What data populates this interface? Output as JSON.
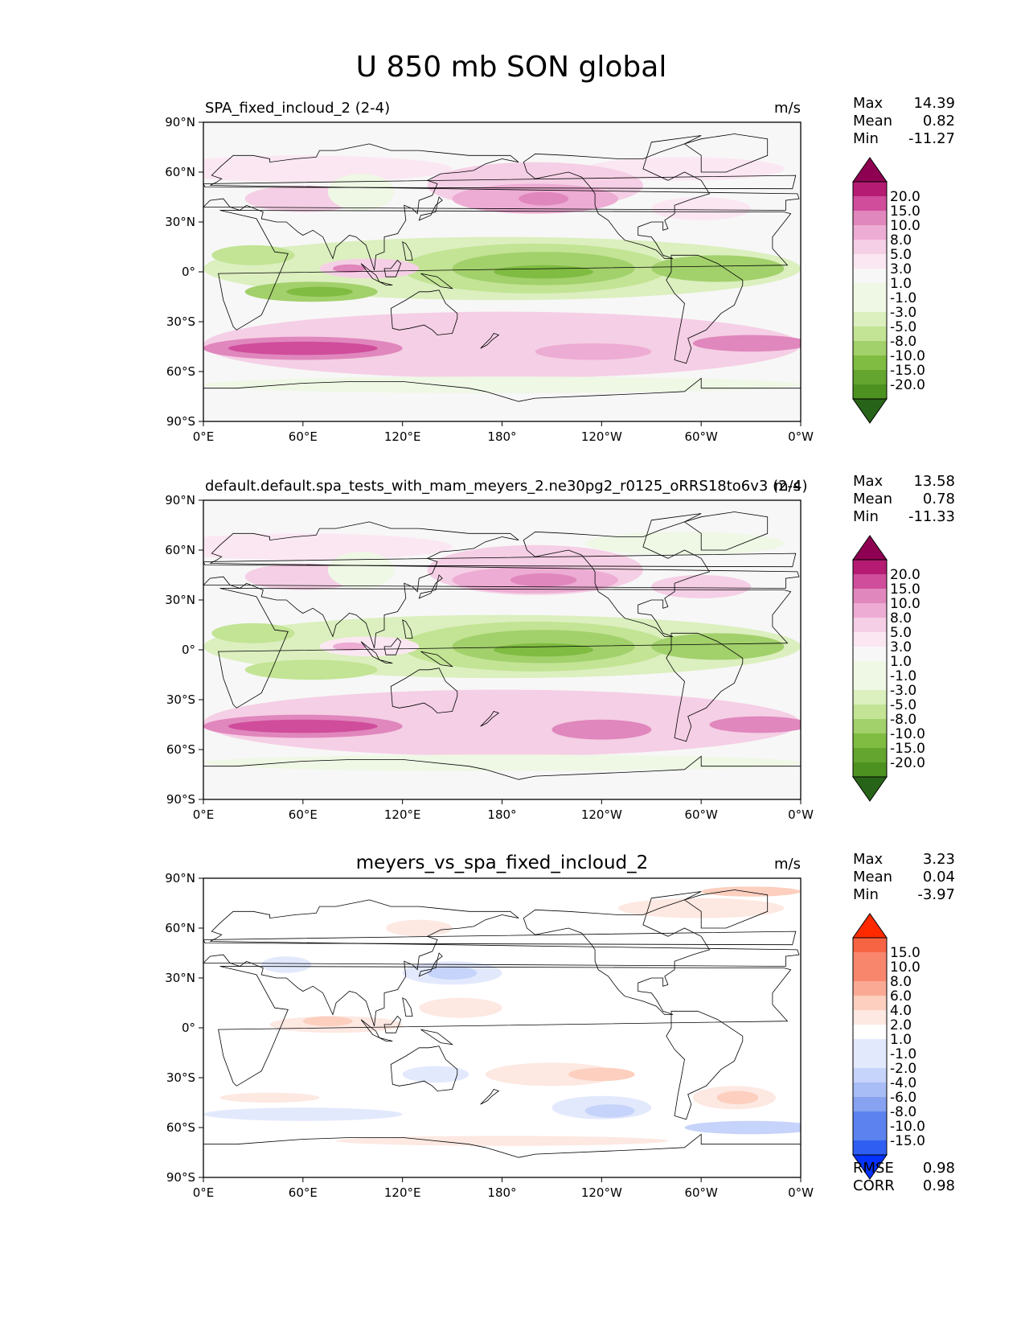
{
  "title": "U 850 mb SON global",
  "colors": {
    "diverging_pg": [
      "#276419",
      "#4d9221",
      "#63a52f",
      "#7fbc41",
      "#a2d06b",
      "#c2e494",
      "#dcefbf",
      "#eff7e5",
      "#f7f7f7",
      "#fbe7f2",
      "#f5cfe5",
      "#edacd3",
      "#e087bd",
      "#d04d9b",
      "#b51b73",
      "#8e0152"
    ],
    "diverging_br": [
      "#0432ff",
      "#2f5ff2",
      "#5b82ee",
      "#86a2f0",
      "#a8bcf5",
      "#c6d3fa",
      "#e3e9fd",
      "#ffffff",
      "#fde8e2",
      "#fccfbf",
      "#faa995",
      "#f8866c",
      "#f76444",
      "#ff2a00"
    ],
    "land_outline": "#000000"
  },
  "chart_data": [
    {
      "type": "heatmap",
      "id": "panel-1",
      "title": "SPA_fixed_incloud_2 (2-4)",
      "title_align": "left",
      "units": "m/s",
      "stats": [
        {
          "label": "Max",
          "value": "14.39"
        },
        {
          "label": "Mean",
          "value": "0.82"
        },
        {
          "label": "Min",
          "value": "-11.27"
        }
      ],
      "colorbar_levels": [
        "20.0",
        "15.0",
        "10.0",
        "8.0",
        "5.0",
        "3.0",
        "1.0",
        "-1.0",
        "-3.0",
        "-5.0",
        "-8.0",
        "-10.0",
        "-15.0",
        "-20.0"
      ],
      "palette": "diverging_pg",
      "xticks": [
        "0°E",
        "60°E",
        "120°E",
        "180°",
        "120°W",
        "60°W",
        "0°W"
      ],
      "yticks": [
        "90°N",
        "60°N",
        "30°N",
        "0°",
        "30°S",
        "60°S",
        "90°S"
      ],
      "xlim": [
        0,
        360
      ],
      "ylim": [
        -90,
        90
      ],
      "field": [
        {
          "lon": 180,
          "lat": 0,
          "lon_w": 360,
          "lat_h": 180,
          "level": 8
        },
        {
          "lon": 60,
          "lat": 62,
          "lon_w": 180,
          "lat_h": 16,
          "level": 9
        },
        {
          "lon": 290,
          "lat": 62,
          "lon_w": 120,
          "lat_h": 14,
          "level": 9
        },
        {
          "lon": 200,
          "lat": 52,
          "lon_w": 130,
          "lat_h": 28,
          "level": 10
        },
        {
          "lon": 200,
          "lat": 44,
          "lon_w": 100,
          "lat_h": 18,
          "level": 11
        },
        {
          "lon": 205,
          "lat": 44,
          "lon_w": 30,
          "lat_h": 8,
          "level": 12
        },
        {
          "lon": 60,
          "lat": 44,
          "lon_w": 70,
          "lat_h": 16,
          "level": 10
        },
        {
          "lon": 300,
          "lat": 38,
          "lon_w": 60,
          "lat_h": 14,
          "level": 9
        },
        {
          "lon": 95,
          "lat": 48,
          "lon_w": 40,
          "lat_h": 22,
          "level": 7
        },
        {
          "lon": 180,
          "lat": 2,
          "lon_w": 360,
          "lat_h": 38,
          "level": 6
        },
        {
          "lon": 200,
          "lat": 2,
          "lon_w": 160,
          "lat_h": 30,
          "level": 5
        },
        {
          "lon": 205,
          "lat": 2,
          "lon_w": 110,
          "lat_h": 20,
          "level": 4
        },
        {
          "lon": 205,
          "lat": 0,
          "lon_w": 60,
          "lat_h": 8,
          "level": 3
        },
        {
          "lon": 310,
          "lat": 2,
          "lon_w": 80,
          "lat_h": 16,
          "level": 4
        },
        {
          "lon": 30,
          "lat": 10,
          "lon_w": 50,
          "lat_h": 12,
          "level": 5
        },
        {
          "lon": 65,
          "lat": -12,
          "lon_w": 80,
          "lat_h": 12,
          "level": 4
        },
        {
          "lon": 70,
          "lat": -12,
          "lon_w": 40,
          "lat_h": 6,
          "level": 3
        },
        {
          "lon": 100,
          "lat": 2,
          "lon_w": 60,
          "lat_h": 12,
          "level": 10
        },
        {
          "lon": 88,
          "lat": 2,
          "lon_w": 20,
          "lat_h": 5,
          "level": 12
        },
        {
          "lon": 180,
          "lat": -44,
          "lon_w": 360,
          "lat_h": 40,
          "level": 10
        },
        {
          "lon": 60,
          "lat": -46,
          "lon_w": 120,
          "lat_h": 14,
          "level": 12
        },
        {
          "lon": 60,
          "lat": -46,
          "lon_w": 90,
          "lat_h": 8,
          "level": 13
        },
        {
          "lon": 330,
          "lat": -43,
          "lon_w": 70,
          "lat_h": 10,
          "level": 12
        },
        {
          "lon": 235,
          "lat": -48,
          "lon_w": 70,
          "lat_h": 10,
          "level": 11
        },
        {
          "lon": 180,
          "lat": -68,
          "lon_w": 360,
          "lat_h": 10,
          "level": 7
        },
        {
          "lon": 180,
          "lat": -77,
          "lon_w": 360,
          "lat_h": 8,
          "level": 8
        }
      ]
    },
    {
      "type": "heatmap",
      "id": "panel-2",
      "title": "default.default.spa_tests_with_mam_meyers_2.ne30pg2_r0125_oRRS18to6v3 (2-4)",
      "title_align": "left",
      "units": "m/s",
      "stats": [
        {
          "label": "Max",
          "value": "13.58"
        },
        {
          "label": "Mean",
          "value": "0.78"
        },
        {
          "label": "Min",
          "value": "-11.33"
        }
      ],
      "colorbar_levels": [
        "20.0",
        "15.0",
        "10.0",
        "8.0",
        "5.0",
        "3.0",
        "1.0",
        "-1.0",
        "-3.0",
        "-5.0",
        "-8.0",
        "-10.0",
        "-15.0",
        "-20.0"
      ],
      "palette": "diverging_pg",
      "xticks": [
        "0°E",
        "60°E",
        "120°E",
        "180°",
        "120°W",
        "60°W",
        "0°W"
      ],
      "yticks": [
        "90°N",
        "60°N",
        "30°N",
        "0°",
        "30°S",
        "60°S",
        "90°S"
      ],
      "xlim": [
        0,
        360
      ],
      "ylim": [
        -90,
        90
      ],
      "field": [
        {
          "lon": 180,
          "lat": 0,
          "lon_w": 360,
          "lat_h": 180,
          "level": 8
        },
        {
          "lon": 60,
          "lat": 62,
          "lon_w": 180,
          "lat_h": 16,
          "level": 9
        },
        {
          "lon": 290,
          "lat": 64,
          "lon_w": 120,
          "lat_h": 14,
          "level": 7
        },
        {
          "lon": 200,
          "lat": 48,
          "lon_w": 130,
          "lat_h": 30,
          "level": 10
        },
        {
          "lon": 200,
          "lat": 42,
          "lon_w": 100,
          "lat_h": 16,
          "level": 11
        },
        {
          "lon": 205,
          "lat": 42,
          "lon_w": 40,
          "lat_h": 8,
          "level": 12
        },
        {
          "lon": 60,
          "lat": 44,
          "lon_w": 70,
          "lat_h": 16,
          "level": 10
        },
        {
          "lon": 300,
          "lat": 38,
          "lon_w": 60,
          "lat_h": 14,
          "level": 10
        },
        {
          "lon": 95,
          "lat": 48,
          "lon_w": 40,
          "lat_h": 22,
          "level": 7
        },
        {
          "lon": 180,
          "lat": 2,
          "lon_w": 360,
          "lat_h": 38,
          "level": 6
        },
        {
          "lon": 200,
          "lat": 2,
          "lon_w": 160,
          "lat_h": 30,
          "level": 5
        },
        {
          "lon": 205,
          "lat": 2,
          "lon_w": 110,
          "lat_h": 20,
          "level": 4
        },
        {
          "lon": 205,
          "lat": 0,
          "lon_w": 60,
          "lat_h": 8,
          "level": 3
        },
        {
          "lon": 310,
          "lat": 2,
          "lon_w": 80,
          "lat_h": 16,
          "level": 4
        },
        {
          "lon": 30,
          "lat": 10,
          "lon_w": 50,
          "lat_h": 12,
          "level": 5
        },
        {
          "lon": 65,
          "lat": -12,
          "lon_w": 80,
          "lat_h": 12,
          "level": 5
        },
        {
          "lon": 100,
          "lat": 2,
          "lon_w": 60,
          "lat_h": 12,
          "level": 9
        },
        {
          "lon": 88,
          "lat": 2,
          "lon_w": 20,
          "lat_h": 5,
          "level": 11
        },
        {
          "lon": 180,
          "lat": -44,
          "lon_w": 360,
          "lat_h": 40,
          "level": 10
        },
        {
          "lon": 60,
          "lat": -46,
          "lon_w": 120,
          "lat_h": 14,
          "level": 12
        },
        {
          "lon": 60,
          "lat": -46,
          "lon_w": 90,
          "lat_h": 8,
          "level": 13
        },
        {
          "lon": 335,
          "lat": -45,
          "lon_w": 60,
          "lat_h": 10,
          "level": 12
        },
        {
          "lon": 240,
          "lat": -48,
          "lon_w": 60,
          "lat_h": 12,
          "level": 12
        },
        {
          "lon": 180,
          "lat": -68,
          "lon_w": 360,
          "lat_h": 10,
          "level": 7
        },
        {
          "lon": 180,
          "lat": -77,
          "lon_w": 360,
          "lat_h": 8,
          "level": 8
        }
      ]
    },
    {
      "type": "heatmap",
      "id": "panel-3",
      "title": "meyers_vs_spa_fixed_incloud_2",
      "title_align": "center",
      "units": "m/s",
      "stats": [
        {
          "label": "Max",
          "value": "3.23"
        },
        {
          "label": "Mean",
          "value": "0.04"
        },
        {
          "label": "Min",
          "value": "-3.97"
        }
      ],
      "metrics": [
        {
          "label": "RMSE",
          "value": "0.98"
        },
        {
          "label": "CORR",
          "value": "0.98"
        }
      ],
      "colorbar_levels": [
        "15.0",
        "10.0",
        "8.0",
        "6.0",
        "4.0",
        "2.0",
        "1.0",
        "-1.0",
        "-2.0",
        "-4.0",
        "-6.0",
        "-8.0",
        "-10.0",
        "-15.0"
      ],
      "palette": "diverging_br",
      "xticks": [
        "0°E",
        "60°E",
        "120°E",
        "180°",
        "120°W",
        "60°W",
        "0°W"
      ],
      "yticks": [
        "90°N",
        "60°N",
        "30°N",
        "0°",
        "30°S",
        "60°S",
        "90°S"
      ],
      "xlim": [
        0,
        360
      ],
      "ylim": [
        -90,
        90
      ],
      "field": [
        {
          "lon": 180,
          "lat": 0,
          "lon_w": 360,
          "lat_h": 180,
          "level": 7
        },
        {
          "lon": 150,
          "lat": 33,
          "lon_w": 60,
          "lat_h": 14,
          "level": 6
        },
        {
          "lon": 150,
          "lat": 33,
          "lon_w": 30,
          "lat_h": 8,
          "level": 5
        },
        {
          "lon": 50,
          "lat": 38,
          "lon_w": 30,
          "lat_h": 10,
          "level": 6
        },
        {
          "lon": 300,
          "lat": 72,
          "lon_w": 100,
          "lat_h": 12,
          "level": 8
        },
        {
          "lon": 330,
          "lat": 82,
          "lon_w": 60,
          "lat_h": 6,
          "level": 9
        },
        {
          "lon": 130,
          "lat": 60,
          "lon_w": 40,
          "lat_h": 10,
          "level": 8
        },
        {
          "lon": 155,
          "lat": 12,
          "lon_w": 50,
          "lat_h": 12,
          "level": 8
        },
        {
          "lon": 80,
          "lat": 2,
          "lon_w": 80,
          "lat_h": 10,
          "level": 8
        },
        {
          "lon": 75,
          "lat": 4,
          "lon_w": 30,
          "lat_h": 6,
          "level": 9
        },
        {
          "lon": 210,
          "lat": -28,
          "lon_w": 80,
          "lat_h": 14,
          "level": 8
        },
        {
          "lon": 240,
          "lat": -28,
          "lon_w": 40,
          "lat_h": 8,
          "level": 9
        },
        {
          "lon": 320,
          "lat": -42,
          "lon_w": 50,
          "lat_h": 14,
          "level": 8
        },
        {
          "lon": 322,
          "lat": -42,
          "lon_w": 25,
          "lat_h": 8,
          "level": 9
        },
        {
          "lon": 240,
          "lat": -48,
          "lon_w": 60,
          "lat_h": 14,
          "level": 6
        },
        {
          "lon": 245,
          "lat": -50,
          "lon_w": 30,
          "lat_h": 8,
          "level": 5
        },
        {
          "lon": 330,
          "lat": -60,
          "lon_w": 80,
          "lat_h": 8,
          "level": 5
        },
        {
          "lon": 60,
          "lat": -52,
          "lon_w": 120,
          "lat_h": 8,
          "level": 6
        },
        {
          "lon": 140,
          "lat": -28,
          "lon_w": 40,
          "lat_h": 10,
          "level": 6
        },
        {
          "lon": 40,
          "lat": -42,
          "lon_w": 60,
          "lat_h": 6,
          "level": 8
        },
        {
          "lon": 180,
          "lat": -68,
          "lon_w": 200,
          "lat_h": 6,
          "level": 8
        }
      ]
    }
  ]
}
